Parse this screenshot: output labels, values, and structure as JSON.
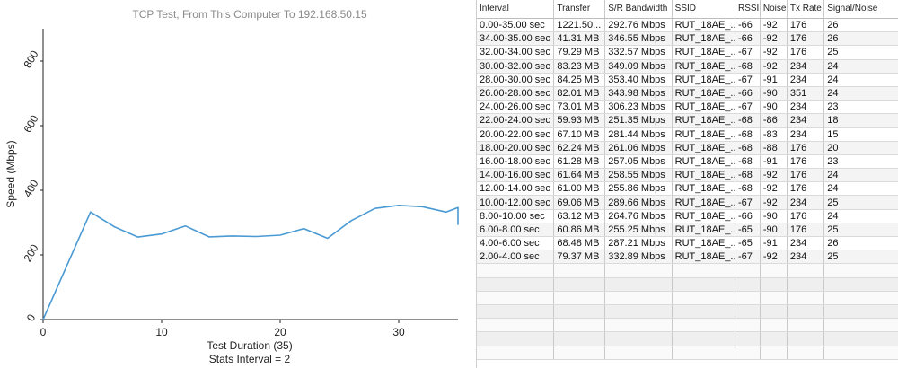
{
  "chart_data": {
    "type": "line",
    "title": "TCP Test,  From This Computer To 192.168.50.15",
    "xlabel": "Test Duration (35)",
    "xlabel2": "Stats Interval = 2",
    "ylabel": "Speed (Mbps)",
    "xlim": [
      0,
      35
    ],
    "ylim": [
      0,
      900
    ],
    "xticks": [
      0,
      10,
      20,
      30
    ],
    "yticks": [
      0,
      200,
      400,
      600,
      800
    ],
    "grid": false,
    "line_color": "#4a9ad4",
    "series": [
      {
        "x": [
          0,
          4,
          6,
          8,
          10,
          12,
          14,
          16,
          18,
          20,
          22,
          24,
          26,
          28,
          30,
          32,
          34,
          35,
          35
        ],
        "values": [
          0,
          332.89,
          287.21,
          255.25,
          264.76,
          289.66,
          255.86,
          258.55,
          257.05,
          261.06,
          281.44,
          251.35,
          306.23,
          343.98,
          353.4,
          349.09,
          332.57,
          346.55,
          292.76
        ]
      }
    ]
  },
  "table": {
    "headers": [
      "Interval",
      "Transfer",
      "S/R Bandwidth",
      "SSID",
      "RSSI",
      "Noise",
      "Tx Rate",
      "Signal/Noise"
    ],
    "rows": [
      [
        "0.00-35.00 sec",
        "1221.50...",
        "292.76 Mbps",
        "RUT_18AE_...",
        "-66",
        "-92",
        "176",
        "26"
      ],
      [
        "34.00-35.00 sec",
        "41.31 MB",
        "346.55 Mbps",
        "RUT_18AE_...",
        "-66",
        "-92",
        "176",
        "26"
      ],
      [
        "32.00-34.00 sec",
        "79.29 MB",
        "332.57 Mbps",
        "RUT_18AE_...",
        "-67",
        "-92",
        "176",
        "25"
      ],
      [
        "30.00-32.00 sec",
        "83.23 MB",
        "349.09 Mbps",
        "RUT_18AE_...",
        "-68",
        "-92",
        "234",
        "24"
      ],
      [
        "28.00-30.00 sec",
        "84.25 MB",
        "353.40 Mbps",
        "RUT_18AE_...",
        "-67",
        "-91",
        "234",
        "24"
      ],
      [
        "26.00-28.00 sec",
        "82.01 MB",
        "343.98 Mbps",
        "RUT_18AE_...",
        "-66",
        "-90",
        "351",
        "24"
      ],
      [
        "24.00-26.00 sec",
        "73.01 MB",
        "306.23 Mbps",
        "RUT_18AE_...",
        "-67",
        "-90",
        "234",
        "23"
      ],
      [
        "22.00-24.00 sec",
        "59.93 MB",
        "251.35 Mbps",
        "RUT_18AE_...",
        "-68",
        "-86",
        "234",
        "18"
      ],
      [
        "20.00-22.00 sec",
        "67.10 MB",
        "281.44 Mbps",
        "RUT_18AE_...",
        "-68",
        "-83",
        "234",
        "15"
      ],
      [
        "18.00-20.00 sec",
        "62.24 MB",
        "261.06 Mbps",
        "RUT_18AE_...",
        "-68",
        "-88",
        "176",
        "20"
      ],
      [
        "16.00-18.00 sec",
        "61.28 MB",
        "257.05 Mbps",
        "RUT_18AE_...",
        "-68",
        "-91",
        "176",
        "23"
      ],
      [
        "14.00-16.00 sec",
        "61.64 MB",
        "258.55 Mbps",
        "RUT_18AE_...",
        "-68",
        "-92",
        "176",
        "24"
      ],
      [
        "12.00-14.00 sec",
        "61.00 MB",
        "255.86 Mbps",
        "RUT_18AE_...",
        "-68",
        "-92",
        "176",
        "24"
      ],
      [
        "10.00-12.00 sec",
        "69.06 MB",
        "289.66 Mbps",
        "RUT_18AE_...",
        "-67",
        "-92",
        "234",
        "25"
      ],
      [
        "8.00-10.00 sec",
        "63.12 MB",
        "264.76 Mbps",
        "RUT_18AE_...",
        "-66",
        "-90",
        "176",
        "24"
      ],
      [
        "6.00-8.00 sec",
        "60.86 MB",
        "255.25 Mbps",
        "RUT_18AE_...",
        "-65",
        "-90",
        "176",
        "25"
      ],
      [
        "4.00-6.00 sec",
        "68.48 MB",
        "287.21 Mbps",
        "RUT_18AE_...",
        "-65",
        "-91",
        "234",
        "26"
      ],
      [
        "2.00-4.00 sec",
        "79.37 MB",
        "332.89 Mbps",
        "RUT_18AE_...",
        "-67",
        "-92",
        "234",
        "25"
      ]
    ],
    "empty_rows": 7
  }
}
